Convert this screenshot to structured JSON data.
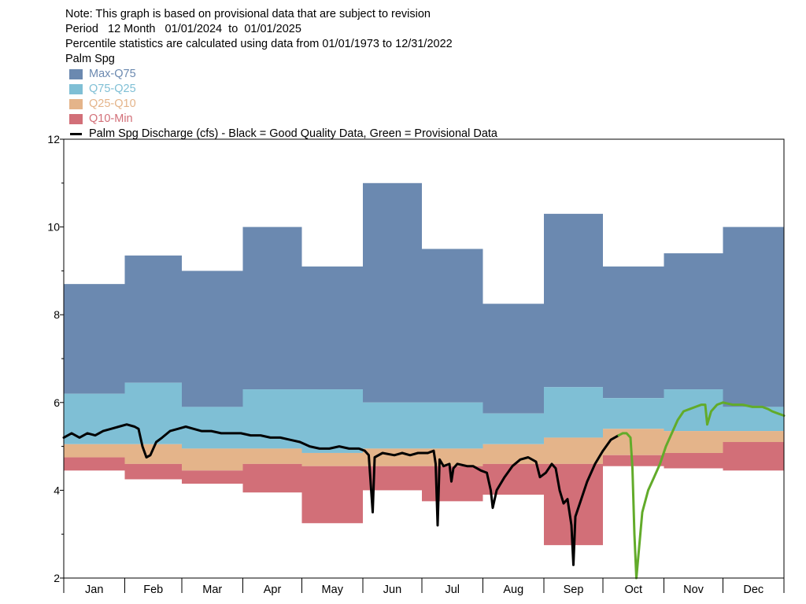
{
  "header": {
    "note": "Note: This graph is based on provisional data that are subject to revision",
    "period": "Period   12 Month   01/01/2024  to  01/01/2025",
    "percentile": "Percentile statistics are calculated using data from 01/01/1973 to 12/31/2022",
    "station": "Palm Spg"
  },
  "colors": {
    "max_q75": "#6b89b0",
    "q75_q25": "#7fbfd5",
    "q25_q10": "#e4b48a",
    "q10_min": "#d26f78",
    "good": "#000000",
    "provisional": "#62ab2a"
  },
  "chart_data": {
    "type": "area",
    "legend": [
      {
        "label": "Max-Q75",
        "color": "#6b89b0",
        "kind": "band"
      },
      {
        "label": "Q75-Q25",
        "color": "#7fbfd5",
        "kind": "band"
      },
      {
        "label": "Q25-Q10",
        "color": "#e4b48a",
        "kind": "band"
      },
      {
        "label": "Q10-Min",
        "color": "#d26f78",
        "kind": "band"
      },
      {
        "label": "Palm Spg Discharge (cfs) - Black = Good Quality Data, Green = Provisional Data",
        "color": "#000000",
        "kind": "line"
      }
    ],
    "months": [
      "Jan",
      "Feb",
      "Mar",
      "Apr",
      "May",
      "Jun",
      "Jul",
      "Aug",
      "Sep",
      "Oct",
      "Nov",
      "Dec"
    ],
    "ylim": [
      2,
      12
    ],
    "yticks": [
      2,
      4,
      6,
      8,
      10,
      12
    ],
    "percentiles": {
      "max": [
        8.7,
        9.35,
        9.0,
        10.0,
        9.1,
        11.0,
        9.5,
        8.25,
        10.3,
        9.1,
        9.4,
        10.0
      ],
      "q75": [
        6.2,
        6.45,
        5.9,
        6.3,
        6.3,
        6.0,
        6.0,
        5.75,
        6.35,
        6.1,
        6.3,
        5.9
      ],
      "q25": [
        5.05,
        5.05,
        4.95,
        4.95,
        4.85,
        4.95,
        4.95,
        5.05,
        5.2,
        5.4,
        5.35,
        5.35
      ],
      "q10": [
        4.75,
        4.6,
        4.45,
        4.6,
        4.55,
        4.55,
        4.55,
        4.6,
        4.6,
        4.8,
        4.85,
        5.1
      ],
      "min": [
        4.45,
        4.25,
        4.15,
        3.95,
        3.25,
        4.0,
        3.75,
        3.9,
        2.75,
        4.55,
        4.5,
        4.45
      ]
    },
    "discharge_good": [
      [
        0,
        5.2
      ],
      [
        4,
        5.3
      ],
      [
        8,
        5.2
      ],
      [
        12,
        5.3
      ],
      [
        16,
        5.25
      ],
      [
        20,
        5.35
      ],
      [
        24,
        5.4
      ],
      [
        28,
        5.45
      ],
      [
        32,
        5.5
      ],
      [
        36,
        5.45
      ],
      [
        38,
        5.4
      ],
      [
        40,
        5.0
      ],
      [
        42,
        4.75
      ],
      [
        44,
        4.8
      ],
      [
        47,
        5.1
      ],
      [
        50,
        5.2
      ],
      [
        54,
        5.35
      ],
      [
        58,
        5.4
      ],
      [
        62,
        5.45
      ],
      [
        66,
        5.4
      ],
      [
        70,
        5.35
      ],
      [
        75,
        5.35
      ],
      [
        80,
        5.3
      ],
      [
        85,
        5.3
      ],
      [
        90,
        5.3
      ],
      [
        95,
        5.25
      ],
      [
        100,
        5.25
      ],
      [
        105,
        5.2
      ],
      [
        110,
        5.2
      ],
      [
        115,
        5.15
      ],
      [
        120,
        5.1
      ],
      [
        125,
        5.0
      ],
      [
        130,
        4.95
      ],
      [
        135,
        4.95
      ],
      [
        140,
        5.0
      ],
      [
        145,
        4.95
      ],
      [
        150,
        4.95
      ],
      [
        153,
        4.9
      ],
      [
        155,
        4.8
      ],
      [
        157,
        3.5
      ],
      [
        158,
        4.75
      ],
      [
        162,
        4.85
      ],
      [
        168,
        4.8
      ],
      [
        172,
        4.85
      ],
      [
        176,
        4.8
      ],
      [
        180,
        4.85
      ],
      [
        185,
        4.85
      ],
      [
        188,
        4.9
      ],
      [
        189,
        4.6
      ],
      [
        190,
        3.2
      ],
      [
        191,
        4.7
      ],
      [
        193,
        4.55
      ],
      [
        196,
        4.6
      ],
      [
        197,
        4.2
      ],
      [
        198,
        4.5
      ],
      [
        200,
        4.6
      ],
      [
        205,
        4.55
      ],
      [
        208,
        4.55
      ],
      [
        212,
        4.45
      ],
      [
        215,
        4.4
      ],
      [
        217,
        4.0
      ],
      [
        218,
        3.6
      ],
      [
        220,
        4.0
      ],
      [
        224,
        4.3
      ],
      [
        228,
        4.55
      ],
      [
        232,
        4.7
      ],
      [
        236,
        4.75
      ],
      [
        240,
        4.65
      ],
      [
        242,
        4.3
      ],
      [
        245,
        4.4
      ],
      [
        248,
        4.6
      ],
      [
        250,
        4.5
      ],
      [
        252,
        4.0
      ],
      [
        254,
        3.7
      ],
      [
        256,
        3.8
      ],
      [
        258,
        3.2
      ],
      [
        259,
        2.3
      ],
      [
        260,
        3.4
      ],
      [
        263,
        3.8
      ],
      [
        266,
        4.2
      ],
      [
        270,
        4.6
      ],
      [
        274,
        4.9
      ],
      [
        278,
        5.15
      ],
      [
        282,
        5.25
      ]
    ],
    "discharge_provisional": [
      [
        282,
        5.25
      ],
      [
        284,
        5.3
      ],
      [
        286,
        5.3
      ],
      [
        288,
        5.2
      ],
      [
        289,
        4.5
      ],
      [
        290,
        3.0
      ],
      [
        291,
        2.0
      ],
      [
        292,
        2.5
      ],
      [
        293,
        3.0
      ],
      [
        294,
        3.5
      ],
      [
        297,
        4.0
      ],
      [
        300,
        4.3
      ],
      [
        303,
        4.6
      ],
      [
        306,
        5.0
      ],
      [
        309,
        5.3
      ],
      [
        312,
        5.6
      ],
      [
        315,
        5.8
      ],
      [
        318,
        5.85
      ],
      [
        321,
        5.9
      ],
      [
        324,
        5.95
      ],
      [
        326,
        5.95
      ],
      [
        327,
        5.5
      ],
      [
        329,
        5.8
      ],
      [
        332,
        5.95
      ],
      [
        335,
        6.0
      ],
      [
        340,
        5.95
      ],
      [
        345,
        5.95
      ],
      [
        350,
        5.9
      ],
      [
        355,
        5.9
      ],
      [
        358,
        5.85
      ],
      [
        360,
        5.8
      ],
      [
        363,
        5.75
      ],
      [
        366,
        5.7
      ]
    ]
  }
}
